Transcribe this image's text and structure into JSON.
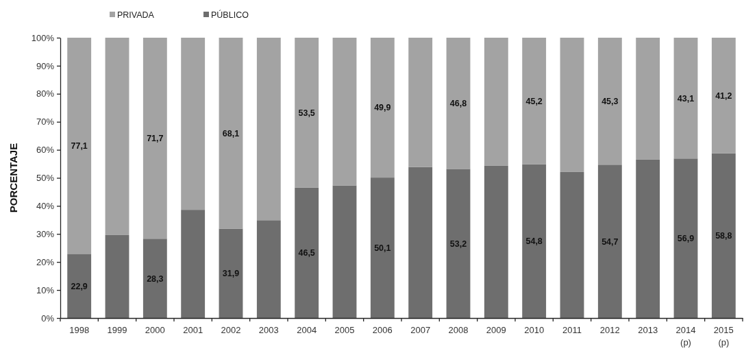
{
  "chart_data": {
    "type": "bar",
    "stacked": true,
    "ylabel": "PORCENTAJE",
    "categories": [
      "1998",
      "1999",
      "2000",
      "2001",
      "2002",
      "2003",
      "2004",
      "2005",
      "2006",
      "2007",
      "2008",
      "2009",
      "2010",
      "2011",
      "2012",
      "2013",
      "2014\n(p)",
      "2015\n(p)"
    ],
    "series": [
      {
        "name": "PÚBLICO",
        "color": "#6e6e6e",
        "values": [
          22.9,
          29.6,
          28.3,
          38.6,
          31.9,
          34.9,
          46.5,
          47.3,
          50.1,
          53.9,
          53.2,
          54.3,
          54.8,
          52.1,
          54.7,
          56.5,
          56.9,
          58.8
        ],
        "value_labels": [
          "22,9",
          null,
          "28,3",
          null,
          "31,9",
          null,
          "46,5",
          null,
          "50,1",
          null,
          "53,2",
          null,
          "54,8",
          null,
          "54,7",
          null,
          "56,9",
          "58,8"
        ]
      },
      {
        "name": "PRIVADA",
        "color": "#a3a3a3",
        "values": [
          77.1,
          70.4,
          71.7,
          61.4,
          68.1,
          65.1,
          53.5,
          52.7,
          49.9,
          46.1,
          46.8,
          45.7,
          45.2,
          47.9,
          45.3,
          43.5,
          43.1,
          41.2
        ],
        "value_labels": [
          "77,1",
          null,
          "71,7",
          null,
          "68,1",
          null,
          "53,5",
          null,
          "49,9",
          null,
          "46,8",
          null,
          "45,2",
          null,
          "45,3",
          null,
          "43,1",
          "41,2"
        ]
      }
    ],
    "ylim": [
      0,
      100
    ],
    "yticks": [
      {
        "value": 0,
        "label": "0%"
      },
      {
        "value": 10,
        "label": "10%"
      },
      {
        "value": 20,
        "label": "20%"
      },
      {
        "value": 30,
        "label": "30%"
      },
      {
        "value": 40,
        "label": "40%"
      },
      {
        "value": 50,
        "label": "50%"
      },
      {
        "value": 60,
        "label": "60%"
      },
      {
        "value": 70,
        "label": "70%"
      },
      {
        "value": 80,
        "label": "80%"
      },
      {
        "value": 90,
        "label": "90%"
      },
      {
        "value": 100,
        "label": "100%"
      }
    ],
    "legend": "top left"
  }
}
